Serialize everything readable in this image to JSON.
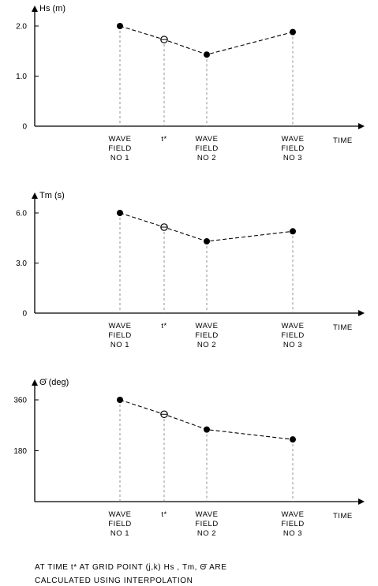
{
  "caption": {
    "line1": "AT TIME t* AT GRID POINT (j,k) Hs , Tm, Θ̄ ARE",
    "line2": "CALCULATED USING INTERPOLATION"
  },
  "chart_data": [
    {
      "type": "line",
      "ylabel": "Hs (m)",
      "xlabel": "TIME",
      "yticks": [
        {
          "value": 2.0,
          "label": "2.0"
        },
        {
          "value": 1.0,
          "label": "1.0"
        },
        {
          "value": 0,
          "label": "0"
        }
      ],
      "ylim": [
        0,
        2.0
      ],
      "categories": [
        "WAVE FIELD NO 1",
        "t*",
        "WAVE FIELD NO 2",
        "WAVE FIELD NO 3"
      ],
      "values": [
        2.0,
        1.73,
        1.43,
        1.88
      ],
      "interpolated": [
        false,
        true,
        false,
        false
      ],
      "style": {
        "line": "dashed",
        "grid": "dashed vertical drop-lines"
      }
    },
    {
      "type": "line",
      "ylabel": "Tm (s)",
      "xlabel": "TIME",
      "yticks": [
        {
          "value": 6.0,
          "label": "6.0"
        },
        {
          "value": 3.0,
          "label": "3.0"
        },
        {
          "value": 0,
          "label": "0"
        }
      ],
      "ylim": [
        0,
        6.0
      ],
      "categories": [
        "WAVE FIELD NO 1",
        "t*",
        "WAVE FIELD NO 2",
        "WAVE FIELD NO 3"
      ],
      "values": [
        6.0,
        5.15,
        4.3,
        4.9
      ],
      "interpolated": [
        false,
        true,
        false,
        false
      ],
      "style": {
        "line": "dashed",
        "grid": "dashed vertical drop-lines"
      }
    },
    {
      "type": "line",
      "ylabel": "Θ̄ (deg)",
      "xlabel": "TIME",
      "yticks": [
        {
          "value": 360,
          "label": "360"
        },
        {
          "value": 180,
          "label": "180"
        }
      ],
      "ylim": [
        0,
        360
      ],
      "categories": [
        "WAVE FIELD NO 1",
        "t*",
        "WAVE FIELD NO 2",
        "WAVE FIELD NO 3"
      ],
      "values": [
        360,
        309,
        255,
        220
      ],
      "interpolated": [
        false,
        true,
        false,
        false
      ],
      "style": {
        "line": "dashed",
        "grid": "dashed vertical drop-lines"
      }
    }
  ]
}
